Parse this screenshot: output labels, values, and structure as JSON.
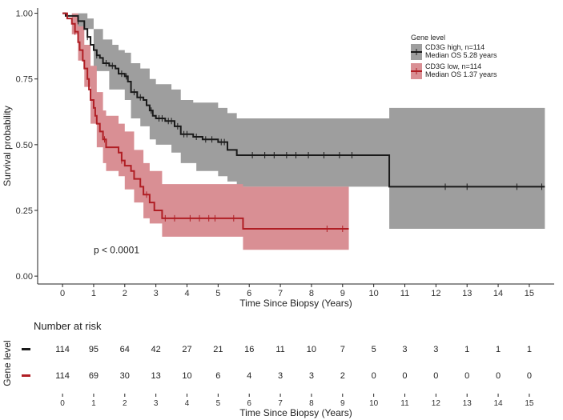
{
  "chart_data": {
    "type": "line",
    "subtype": "kaplan-meier",
    "title": "",
    "xlabel": "Time Since Biopsy (Years)",
    "ylabel": "Survival probability",
    "xlim": [
      -0.8,
      15.8
    ],
    "ylim": [
      -0.03,
      1.02
    ],
    "x_ticks": [
      "0",
      "1",
      "2",
      "3",
      "4",
      "5",
      "6",
      "7",
      "8",
      "9",
      "10",
      "11",
      "12",
      "13",
      "14",
      "15"
    ],
    "y_ticks": [
      "0.00",
      "0.25",
      "0.50",
      "0.75",
      "1.00"
    ],
    "grid": false,
    "annotation": "p < 0.0001",
    "legend": {
      "title": "Gene level",
      "placement": "top-right",
      "entries": [
        {
          "label": "CD3G high, n=114",
          "sublabel": "Median OS 5.28 years",
          "color": "#1a1a1a",
          "band_color": "#9e9e9e"
        },
        {
          "label": "CD3G low, n=114",
          "sublabel": "Median OS 1.37 years",
          "color": "#b01e24",
          "band_color": "#d98f94"
        }
      ]
    },
    "series": [
      {
        "name": "CD3G high, n=114",
        "color": "#1a1a1a",
        "band_color": "#9e9e9e",
        "steps": [
          [
            0,
            1.0
          ],
          [
            0.1,
            0.99
          ],
          [
            0.5,
            0.97
          ],
          [
            0.7,
            0.94
          ],
          [
            0.8,
            0.91
          ],
          [
            0.9,
            0.88
          ],
          [
            1.0,
            0.86
          ],
          [
            1.1,
            0.84
          ],
          [
            1.2,
            0.83
          ],
          [
            1.3,
            0.81
          ],
          [
            1.5,
            0.8
          ],
          [
            1.7,
            0.79
          ],
          [
            1.8,
            0.77
          ],
          [
            2.0,
            0.76
          ],
          [
            2.1,
            0.74
          ],
          [
            2.2,
            0.7
          ],
          [
            2.4,
            0.68
          ],
          [
            2.6,
            0.67
          ],
          [
            2.7,
            0.65
          ],
          [
            2.8,
            0.63
          ],
          [
            2.9,
            0.61
          ],
          [
            3.0,
            0.6
          ],
          [
            3.3,
            0.59
          ],
          [
            3.6,
            0.57
          ],
          [
            3.8,
            0.54
          ],
          [
            4.2,
            0.53
          ],
          [
            4.5,
            0.52
          ],
          [
            5.0,
            0.51
          ],
          [
            5.3,
            0.48
          ],
          [
            5.6,
            0.46
          ],
          [
            10.5,
            0.34
          ],
          [
            15.5,
            0.34
          ]
        ],
        "lower": [
          [
            0,
            1.0
          ],
          [
            0.5,
            0.94
          ],
          [
            1.0,
            0.78
          ],
          [
            1.5,
            0.71
          ],
          [
            2.0,
            0.67
          ],
          [
            2.2,
            0.6
          ],
          [
            2.5,
            0.57
          ],
          [
            2.8,
            0.52
          ],
          [
            3.0,
            0.5
          ],
          [
            3.5,
            0.47
          ],
          [
            3.8,
            0.43
          ],
          [
            4.3,
            0.4
          ],
          [
            5.0,
            0.38
          ],
          [
            5.3,
            0.36
          ],
          [
            5.6,
            0.34
          ],
          [
            10.5,
            0.18
          ],
          [
            15.5,
            0.18
          ]
        ],
        "upper": [
          [
            0,
            1.0
          ],
          [
            0.5,
            1.0
          ],
          [
            0.8,
            0.98
          ],
          [
            1.0,
            0.94
          ],
          [
            1.3,
            0.9
          ],
          [
            1.6,
            0.88
          ],
          [
            1.8,
            0.86
          ],
          [
            2.0,
            0.85
          ],
          [
            2.2,
            0.81
          ],
          [
            2.5,
            0.79
          ],
          [
            2.8,
            0.75
          ],
          [
            3.0,
            0.73
          ],
          [
            3.5,
            0.71
          ],
          [
            3.8,
            0.67
          ],
          [
            4.2,
            0.66
          ],
          [
            5.0,
            0.64
          ],
          [
            5.3,
            0.62
          ],
          [
            5.6,
            0.6
          ],
          [
            10.5,
            0.64
          ],
          [
            15.5,
            0.64
          ]
        ],
        "censor_x": [
          0.5,
          0.8,
          1.1,
          1.4,
          1.6,
          1.9,
          2.05,
          2.3,
          2.5,
          2.85,
          3.1,
          3.2,
          3.4,
          3.5,
          3.7,
          3.9,
          4.0,
          4.3,
          4.6,
          4.8,
          5.1,
          5.2,
          6.1,
          6.5,
          6.8,
          7.2,
          7.5,
          7.9,
          8.4,
          8.9,
          9.3,
          12.3,
          13.0,
          14.6,
          15.4
        ]
      },
      {
        "name": "CD3G low, n=114",
        "color": "#b01e24",
        "band_color": "#d98f94",
        "steps": [
          [
            0,
            1.0
          ],
          [
            0.15,
            0.98
          ],
          [
            0.3,
            0.96
          ],
          [
            0.4,
            0.93
          ],
          [
            0.5,
            0.89
          ],
          [
            0.55,
            0.86
          ],
          [
            0.65,
            0.82
          ],
          [
            0.7,
            0.79
          ],
          [
            0.8,
            0.75
          ],
          [
            0.85,
            0.71
          ],
          [
            0.9,
            0.67
          ],
          [
            1.0,
            0.64
          ],
          [
            1.05,
            0.61
          ],
          [
            1.1,
            0.58
          ],
          [
            1.2,
            0.55
          ],
          [
            1.3,
            0.52
          ],
          [
            1.4,
            0.49
          ],
          [
            1.8,
            0.47
          ],
          [
            1.9,
            0.44
          ],
          [
            2.0,
            0.42
          ],
          [
            2.2,
            0.4
          ],
          [
            2.3,
            0.37
          ],
          [
            2.5,
            0.34
          ],
          [
            2.6,
            0.31
          ],
          [
            2.8,
            0.28
          ],
          [
            2.95,
            0.25
          ],
          [
            3.2,
            0.22
          ],
          [
            5.8,
            0.18
          ],
          [
            9.2,
            0.18
          ]
        ],
        "lower": [
          [
            0,
            1.0
          ],
          [
            0.3,
            0.92
          ],
          [
            0.5,
            0.82
          ],
          [
            0.7,
            0.72
          ],
          [
            0.9,
            0.58
          ],
          [
            1.1,
            0.49
          ],
          [
            1.3,
            0.43
          ],
          [
            1.4,
            0.4
          ],
          [
            1.8,
            0.38
          ],
          [
            2.0,
            0.33
          ],
          [
            2.3,
            0.28
          ],
          [
            2.6,
            0.22
          ],
          [
            2.8,
            0.2
          ],
          [
            3.2,
            0.15
          ],
          [
            5.8,
            0.1
          ],
          [
            9.2,
            0.1
          ]
        ],
        "upper": [
          [
            0,
            1.0
          ],
          [
            0.3,
            1.0
          ],
          [
            0.5,
            0.95
          ],
          [
            0.7,
            0.88
          ],
          [
            0.9,
            0.8
          ],
          [
            1.1,
            0.7
          ],
          [
            1.3,
            0.63
          ],
          [
            1.4,
            0.61
          ],
          [
            1.8,
            0.58
          ],
          [
            2.0,
            0.55
          ],
          [
            2.3,
            0.48
          ],
          [
            2.6,
            0.43
          ],
          [
            2.8,
            0.4
          ],
          [
            3.2,
            0.35
          ],
          [
            5.8,
            0.34
          ],
          [
            9.2,
            0.34
          ]
        ],
        "censor_x": [
          0.4,
          1.35,
          1.9,
          2.7,
          3.3,
          3.6,
          4.1,
          4.4,
          4.7,
          4.9,
          5.5,
          8.5,
          9.0
        ]
      }
    ],
    "risk_table": {
      "title": "Number at risk",
      "ylabel": "Gene level",
      "xlabel": "Time Since Biopsy (Years)",
      "x_ticks": [
        "0",
        "1",
        "2",
        "3",
        "4",
        "5",
        "6",
        "7",
        "8",
        "9",
        "10",
        "11",
        "12",
        "13",
        "14",
        "15"
      ],
      "rows": [
        {
          "color": "#1a1a1a",
          "values": [
            "114",
            "95",
            "64",
            "42",
            "27",
            "21",
            "16",
            "11",
            "10",
            "7",
            "5",
            "3",
            "3",
            "1",
            "1",
            "1"
          ]
        },
        {
          "color": "#b01e24",
          "values": [
            "114",
            "69",
            "30",
            "13",
            "10",
            "6",
            "4",
            "3",
            "3",
            "2",
            "0",
            "0",
            "0",
            "0",
            "0",
            "0"
          ]
        }
      ]
    }
  }
}
